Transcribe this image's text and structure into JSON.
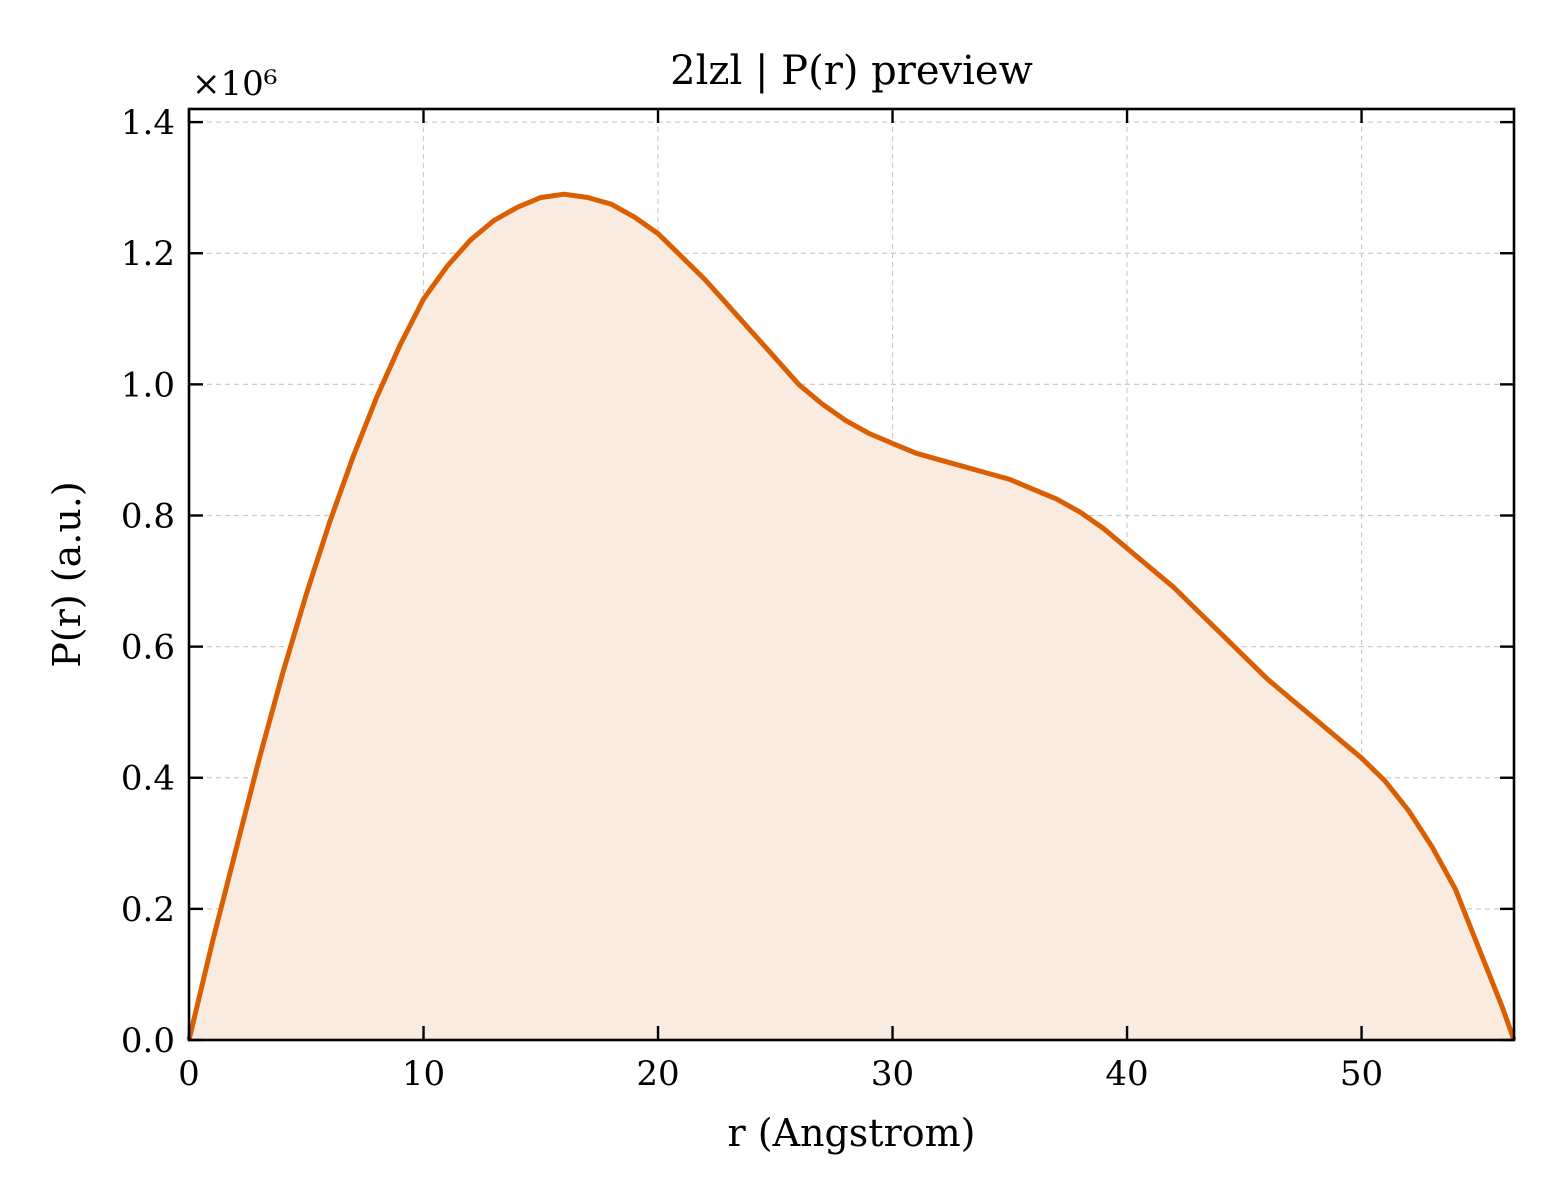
{
  "chart_data": {
    "type": "area",
    "title": "2lzl | P(r) preview",
    "xlabel": "r (Angstrom)",
    "ylabel": "P(r) (a.u.)",
    "y_multiplier_label": "×10⁶",
    "xlim": [
      0,
      56.5
    ],
    "ylim": [
      0,
      1.42
    ],
    "xticks": [
      0,
      10,
      20,
      30,
      40,
      50
    ],
    "yticks": [
      0.0,
      0.2,
      0.4,
      0.6,
      0.8,
      1.0,
      1.2,
      1.4
    ],
    "xtick_labels": [
      "0",
      "10",
      "20",
      "30",
      "40",
      "50"
    ],
    "ytick_labels": [
      "0.0",
      "0.2",
      "0.4",
      "0.6",
      "0.8",
      "1.0",
      "1.2",
      "1.4"
    ],
    "grid": true,
    "line_color": "#d95f02",
    "fill_color": "#f9ebe0",
    "series": [
      {
        "x": [
          0,
          1,
          2,
          3,
          4,
          5,
          6,
          7,
          8,
          9,
          10,
          11,
          12,
          13,
          14,
          15,
          16,
          17,
          18,
          19,
          20,
          21,
          22,
          23,
          24,
          25,
          26,
          27,
          28,
          29,
          30,
          31,
          32,
          33,
          34,
          35,
          36,
          37,
          38,
          39,
          40,
          41,
          42,
          43,
          44,
          45,
          46,
          47,
          48,
          49,
          50,
          51,
          52,
          53,
          54,
          55,
          56,
          56.5
        ],
        "y": [
          0.0,
          0.15,
          0.29,
          0.43,
          0.56,
          0.68,
          0.79,
          0.89,
          0.98,
          1.06,
          1.13,
          1.18,
          1.22,
          1.25,
          1.27,
          1.285,
          1.29,
          1.285,
          1.275,
          1.255,
          1.23,
          1.195,
          1.16,
          1.12,
          1.08,
          1.04,
          1.0,
          0.97,
          0.945,
          0.925,
          0.91,
          0.895,
          0.885,
          0.875,
          0.865,
          0.855,
          0.84,
          0.825,
          0.805,
          0.78,
          0.75,
          0.72,
          0.69,
          0.655,
          0.62,
          0.585,
          0.55,
          0.52,
          0.49,
          0.46,
          0.43,
          0.395,
          0.35,
          0.295,
          0.23,
          0.14,
          0.05,
          0.0
        ]
      }
    ]
  }
}
